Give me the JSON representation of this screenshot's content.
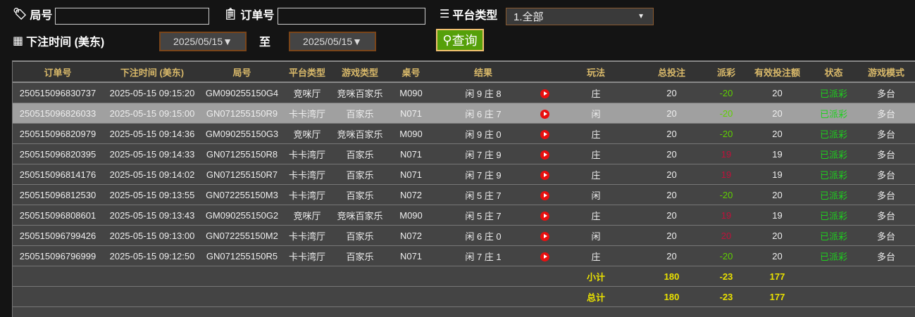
{
  "filters": {
    "round_label": "局号",
    "round_value": "",
    "order_label": "订单号",
    "order_value": "",
    "platform_label": "平台类型",
    "platform_value": "1.全部",
    "time_label": "下注时间 (美东)",
    "date_from": "2025/05/15",
    "to_label": "至",
    "date_to": "2025/05/15",
    "query_label": "查询"
  },
  "table": {
    "headers": [
      "订单号",
      "下注时间 (美东)",
      "局号",
      "平台类型",
      "游戏类型",
      "桌号",
      "结果",
      "",
      "玩法",
      "总投注",
      "派彩",
      "有效投注额",
      "状态",
      "游戏模式"
    ],
    "rows": [
      [
        "250515096830737",
        "2025-05-15 09:15:20",
        "GM090255150G4",
        "竞咪厅",
        "竞咪百家乐",
        "M090",
        "闲 9 庄 8",
        "",
        "庄",
        "20",
        "-20",
        "20",
        "已派彩",
        "多台"
      ],
      [
        "250515096826033",
        "2025-05-15 09:15:00",
        "GN071255150R9",
        "卡卡湾厅",
        "百家乐",
        "N071",
        "闲 6 庄 7",
        "",
        "闲",
        "20",
        "-20",
        "20",
        "已派彩",
        "多台"
      ],
      [
        "250515096820979",
        "2025-05-15 09:14:36",
        "GM090255150G3",
        "竞咪厅",
        "竞咪百家乐",
        "M090",
        "闲 9 庄 0",
        "",
        "庄",
        "20",
        "-20",
        "20",
        "已派彩",
        "多台"
      ],
      [
        "250515096820395",
        "2025-05-15 09:14:33",
        "GN071255150R8",
        "卡卡湾厅",
        "百家乐",
        "N071",
        "闲 7 庄 9",
        "",
        "庄",
        "20",
        "19",
        "19",
        "已派彩",
        "多台"
      ],
      [
        "250515096814176",
        "2025-05-15 09:14:02",
        "GN071255150R7",
        "卡卡湾厅",
        "百家乐",
        "N071",
        "闲 7 庄 9",
        "",
        "庄",
        "20",
        "19",
        "19",
        "已派彩",
        "多台"
      ],
      [
        "250515096812530",
        "2025-05-15 09:13:55",
        "GN072255150M3",
        "卡卡湾厅",
        "百家乐",
        "N072",
        "闲 5 庄 7",
        "",
        "闲",
        "20",
        "-20",
        "20",
        "已派彩",
        "多台"
      ],
      [
        "250515096808601",
        "2025-05-15 09:13:43",
        "GM090255150G2",
        "竞咪厅",
        "竞咪百家乐",
        "M090",
        "闲 5 庄 7",
        "",
        "庄",
        "20",
        "19",
        "19",
        "已派彩",
        "多台"
      ],
      [
        "250515096799426",
        "2025-05-15 09:13:00",
        "GN072255150M2",
        "卡卡湾厅",
        "百家乐",
        "N072",
        "闲 6 庄 0",
        "",
        "闲",
        "20",
        "20",
        "20",
        "已派彩",
        "多台"
      ],
      [
        "250515096796999",
        "2025-05-15 09:12:50",
        "GN071255150R5",
        "卡卡湾厅",
        "百家乐",
        "N071",
        "闲 7 庄 1",
        "",
        "庄",
        "20",
        "-20",
        "20",
        "已派彩",
        "多台"
      ]
    ],
    "subtotal": {
      "label": "小计",
      "total_bet": "180",
      "payout": "-23",
      "valid_bet": "177"
    },
    "total": {
      "label": "总计",
      "total_bet": "180",
      "payout": "-23",
      "valid_bet": "177"
    },
    "highlighted_row": 1
  },
  "colors": {
    "header_text": "#d9b96a",
    "negative": "#5fd000",
    "positive": "#c0103a",
    "status": "#1ed01e",
    "sum": "#e8e000",
    "query_button": "#55a00a"
  }
}
